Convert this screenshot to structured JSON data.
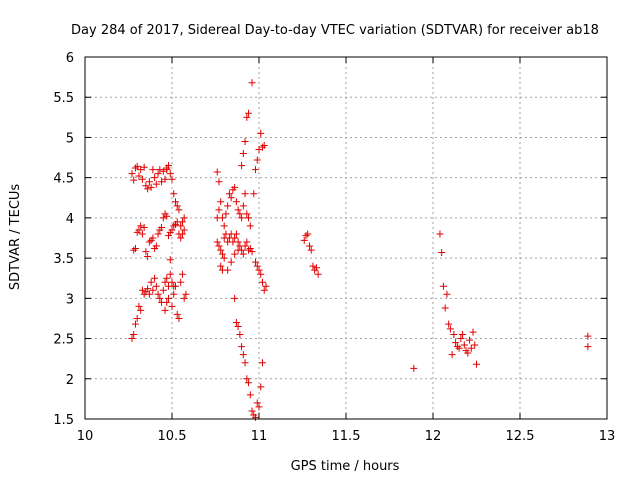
{
  "chart_data": {
    "type": "scatter",
    "title": "Day 284 of 2017, Sidereal Day-to-day VTEC variation (SDTVAR) for receiver ab18",
    "xlabel": "GPS time / hours",
    "ylabel": "SDTVAR / TECUs",
    "xlim": [
      10,
      13
    ],
    "ylim": [
      1.5,
      6
    ],
    "grid": true,
    "marker": "+",
    "marker_color": "#e00000",
    "xticks": [
      10,
      10.5,
      11,
      11.5,
      12,
      12.5,
      13
    ],
    "xtick_labels": [
      "10",
      "10.5",
      "11",
      "11.5",
      "12",
      "12.5",
      "13"
    ],
    "yticks": [
      1.5,
      2,
      2.5,
      3,
      3.5,
      4,
      4.5,
      5,
      5.5,
      6
    ],
    "ytick_labels": [
      "1.5",
      "2",
      "2.5",
      "3",
      "3.5",
      "4",
      "4.5",
      "5",
      "5.5",
      "6"
    ],
    "points": [
      [
        10.27,
        4.55
      ],
      [
        10.28,
        4.47
      ],
      [
        10.29,
        4.62
      ],
      [
        10.3,
        4.64
      ],
      [
        10.31,
        4.52
      ],
      [
        10.32,
        4.6
      ],
      [
        10.33,
        4.48
      ],
      [
        10.34,
        4.63
      ],
      [
        10.35,
        4.4
      ],
      [
        10.36,
        4.36
      ],
      [
        10.37,
        4.45
      ],
      [
        10.38,
        4.38
      ],
      [
        10.39,
        4.6
      ],
      [
        10.4,
        4.5
      ],
      [
        10.41,
        4.42
      ],
      [
        10.42,
        4.55
      ],
      [
        10.43,
        4.6
      ],
      [
        10.44,
        4.45
      ],
      [
        10.45,
        4.58
      ],
      [
        10.46,
        4.48
      ],
      [
        10.47,
        4.62
      ],
      [
        10.48,
        4.65
      ],
      [
        10.49,
        4.55
      ],
      [
        10.5,
        4.48
      ],
      [
        10.51,
        4.3
      ],
      [
        10.47,
        4.6
      ],
      [
        10.28,
        3.6
      ],
      [
        10.29,
        3.62
      ],
      [
        10.3,
        3.82
      ],
      [
        10.31,
        3.85
      ],
      [
        10.32,
        3.9
      ],
      [
        10.33,
        3.8
      ],
      [
        10.34,
        3.88
      ],
      [
        10.35,
        3.58
      ],
      [
        10.36,
        3.52
      ],
      [
        10.37,
        3.7
      ],
      [
        10.38,
        3.72
      ],
      [
        10.39,
        3.75
      ],
      [
        10.4,
        3.62
      ],
      [
        10.41,
        3.65
      ],
      [
        10.42,
        3.8
      ],
      [
        10.43,
        3.85
      ],
      [
        10.44,
        3.88
      ],
      [
        10.45,
        4.0
      ],
      [
        10.46,
        4.05
      ],
      [
        10.47,
        4.02
      ],
      [
        10.48,
        3.78
      ],
      [
        10.49,
        3.82
      ],
      [
        10.5,
        3.85
      ],
      [
        10.51,
        3.9
      ],
      [
        10.52,
        4.2
      ],
      [
        10.53,
        4.15
      ],
      [
        10.54,
        3.8
      ],
      [
        10.55,
        3.9
      ],
      [
        10.56,
        3.95
      ],
      [
        10.57,
        3.85
      ],
      [
        10.52,
        3.92
      ],
      [
        10.53,
        3.95
      ],
      [
        10.54,
        4.1
      ],
      [
        10.55,
        3.75
      ],
      [
        10.56,
        3.8
      ],
      [
        10.57,
        4.0
      ],
      [
        10.38,
        3.2
      ],
      [
        10.39,
        3.1
      ],
      [
        10.4,
        3.25
      ],
      [
        10.41,
        3.15
      ],
      [
        10.42,
        3.05
      ],
      [
        10.43,
        3.0
      ],
      [
        10.44,
        2.95
      ],
      [
        10.45,
        3.1
      ],
      [
        10.46,
        3.2
      ],
      [
        10.47,
        3.25
      ],
      [
        10.48,
        3.15
      ],
      [
        10.49,
        3.3
      ],
      [
        10.5,
        3.2
      ],
      [
        10.51,
        3.05
      ],
      [
        10.52,
        3.15
      ],
      [
        10.53,
        2.8
      ],
      [
        10.54,
        2.75
      ],
      [
        10.55,
        3.2
      ],
      [
        10.56,
        3.3
      ],
      [
        10.57,
        3.0
      ],
      [
        10.58,
        3.05
      ],
      [
        10.49,
        3.48
      ],
      [
        10.51,
        3.15
      ],
      [
        10.5,
        2.9
      ],
      [
        10.33,
        3.1
      ],
      [
        10.34,
        3.05
      ],
      [
        10.35,
        3.08
      ],
      [
        10.36,
        3.12
      ],
      [
        10.37,
        3.05
      ],
      [
        10.31,
        2.9
      ],
      [
        10.32,
        2.85
      ],
      [
        10.3,
        2.75
      ],
      [
        10.29,
        2.68
      ],
      [
        10.28,
        2.55
      ],
      [
        10.27,
        2.5
      ],
      [
        10.46,
        2.85
      ],
      [
        10.47,
        2.95
      ],
      [
        10.48,
        3.0
      ],
      [
        10.76,
        4.57
      ],
      [
        10.77,
        4.45
      ],
      [
        10.76,
        4.0
      ],
      [
        10.77,
        4.1
      ],
      [
        10.78,
        4.2
      ],
      [
        10.79,
        4.0
      ],
      [
        10.8,
        3.9
      ],
      [
        10.81,
        4.05
      ],
      [
        10.82,
        4.15
      ],
      [
        10.83,
        4.3
      ],
      [
        10.84,
        4.25
      ],
      [
        10.85,
        4.35
      ],
      [
        10.86,
        4.38
      ],
      [
        10.87,
        4.2
      ],
      [
        10.88,
        4.1
      ],
      [
        10.89,
        4.05
      ],
      [
        10.9,
        4.0
      ],
      [
        10.91,
        4.15
      ],
      [
        10.92,
        4.3
      ],
      [
        10.93,
        4.05
      ],
      [
        10.94,
        4.0
      ],
      [
        10.95,
        3.9
      ],
      [
        10.76,
        3.7
      ],
      [
        10.77,
        3.65
      ],
      [
        10.78,
        3.6
      ],
      [
        10.79,
        3.55
      ],
      [
        10.8,
        3.75
      ],
      [
        10.81,
        3.8
      ],
      [
        10.82,
        3.7
      ],
      [
        10.83,
        3.75
      ],
      [
        10.84,
        3.8
      ],
      [
        10.85,
        3.7
      ],
      [
        10.86,
        3.75
      ],
      [
        10.87,
        3.8
      ],
      [
        10.88,
        3.7
      ],
      [
        10.89,
        3.65
      ],
      [
        10.9,
        3.6
      ],
      [
        10.91,
        3.55
      ],
      [
        10.92,
        3.65
      ],
      [
        10.93,
        3.7
      ],
      [
        10.94,
        3.6
      ],
      [
        10.95,
        3.62
      ],
      [
        10.96,
        3.58
      ],
      [
        10.78,
        3.4
      ],
      [
        10.79,
        3.35
      ],
      [
        10.8,
        3.5
      ],
      [
        10.82,
        3.35
      ],
      [
        10.84,
        3.45
      ],
      [
        10.86,
        3.55
      ],
      [
        10.88,
        3.6
      ],
      [
        10.86,
        3.0
      ],
      [
        10.9,
        4.65
      ],
      [
        10.91,
        4.8
      ],
      [
        10.92,
        4.95
      ],
      [
        10.93,
        5.25
      ],
      [
        10.94,
        5.3
      ],
      [
        10.96,
        5.68
      ],
      [
        10.98,
        4.6
      ],
      [
        10.99,
        4.72
      ],
      [
        11.0,
        4.85
      ],
      [
        11.01,
        5.05
      ],
      [
        11.02,
        4.88
      ],
      [
        11.03,
        4.9
      ],
      [
        10.97,
        4.3
      ],
      [
        10.98,
        3.45
      ],
      [
        10.99,
        3.4
      ],
      [
        11.0,
        3.35
      ],
      [
        11.01,
        3.3
      ],
      [
        11.02,
        3.2
      ],
      [
        11.03,
        3.1
      ],
      [
        11.04,
        3.15
      ],
      [
        10.87,
        2.7
      ],
      [
        10.88,
        2.65
      ],
      [
        10.89,
        2.55
      ],
      [
        10.9,
        2.4
      ],
      [
        10.91,
        2.3
      ],
      [
        10.92,
        2.2
      ],
      [
        10.93,
        2.0
      ],
      [
        10.94,
        1.95
      ],
      [
        10.95,
        1.8
      ],
      [
        10.96,
        1.6
      ],
      [
        10.97,
        1.55
      ],
      [
        10.98,
        1.52
      ],
      [
        10.99,
        1.7
      ],
      [
        11.0,
        1.65
      ],
      [
        11.01,
        1.9
      ],
      [
        11.02,
        2.2
      ],
      [
        11.26,
        3.72
      ],
      [
        11.27,
        3.78
      ],
      [
        11.28,
        3.8
      ],
      [
        11.29,
        3.65
      ],
      [
        11.3,
        3.6
      ],
      [
        11.31,
        3.4
      ],
      [
        11.32,
        3.35
      ],
      [
        11.33,
        3.38
      ],
      [
        11.34,
        3.3
      ],
      [
        11.89,
        2.13
      ],
      [
        12.04,
        3.8
      ],
      [
        12.05,
        3.57
      ],
      [
        12.06,
        3.15
      ],
      [
        12.07,
        2.88
      ],
      [
        12.08,
        3.05
      ],
      [
        12.09,
        2.68
      ],
      [
        12.1,
        2.62
      ],
      [
        12.11,
        2.3
      ],
      [
        12.12,
        2.55
      ],
      [
        12.13,
        2.45
      ],
      [
        12.14,
        2.4
      ],
      [
        12.15,
        2.38
      ],
      [
        12.16,
        2.5
      ],
      [
        12.17,
        2.55
      ],
      [
        12.18,
        2.42
      ],
      [
        12.19,
        2.35
      ],
      [
        12.2,
        2.32
      ],
      [
        12.21,
        2.48
      ],
      [
        12.22,
        2.38
      ],
      [
        12.23,
        2.58
      ],
      [
        12.24,
        2.42
      ],
      [
        12.25,
        2.18
      ],
      [
        12.89,
        2.53
      ],
      [
        12.89,
        2.4
      ]
    ]
  }
}
